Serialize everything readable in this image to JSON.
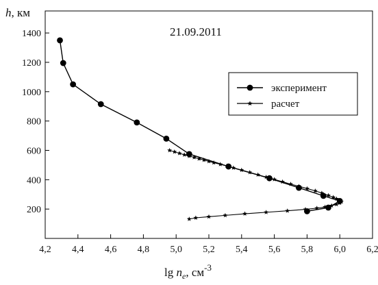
{
  "chart_data": {
    "type": "line",
    "annotation": "21.09.2011",
    "ylabel_var": "h",
    "ylabel_unit": ", км",
    "xlabel_prefix": "lg",
    "xlabel_var": "n",
    "xlabel_sub": "e",
    "xlabel_unit": ",  см",
    "xlabel_exp": "-3",
    "xlim": [
      4.2,
      6.2
    ],
    "ylim": [
      0,
      1550
    ],
    "xticks": [
      4.2,
      4.4,
      4.6,
      4.8,
      5.0,
      5.2,
      5.4,
      5.6,
      5.8,
      6.0,
      6.2
    ],
    "xtick_labels": [
      "4,2",
      "4,4",
      "4,6",
      "4,8",
      "5,0",
      "5,2",
      "5,4",
      "5,6",
      "5,8",
      "6,0",
      "6,2"
    ],
    "yticks": [
      200,
      400,
      600,
      800,
      1000,
      1200,
      1400
    ],
    "ytick_labels": [
      "200",
      "400",
      "600",
      "800",
      "1000",
      "1200",
      "1400"
    ],
    "grid": false,
    "legend_position": "right",
    "series": [
      {
        "name": "эксперимент",
        "marker": "circle",
        "color": "#000000",
        "x": [
          4.29,
          4.31,
          4.37,
          4.54,
          4.76,
          4.94,
          5.08,
          5.32,
          5.57,
          5.75,
          5.9,
          6.0,
          5.93,
          5.8
        ],
        "y": [
          1350,
          1195,
          1050,
          915,
          790,
          680,
          575,
          490,
          410,
          345,
          290,
          255,
          210,
          185
        ]
      },
      {
        "name": "расчет",
        "marker": "star",
        "color": "#000000",
        "x": [
          4.96,
          4.99,
          5.02,
          5.05,
          5.08,
          5.11,
          5.14,
          5.17,
          5.2,
          5.23,
          5.27,
          5.31,
          5.35,
          5.4,
          5.45,
          5.5,
          5.55,
          5.6,
          5.65,
          5.7,
          5.75,
          5.8,
          5.85,
          5.89,
          5.93,
          5.96,
          5.98,
          6.0,
          6.01,
          6.0,
          5.98,
          5.95,
          5.91,
          5.86,
          5.79,
          5.68,
          5.55,
          5.42,
          5.3,
          5.2,
          5.12,
          5.08
        ],
        "y": [
          600,
          590,
          580,
          570,
          561,
          552,
          543,
          534,
          525,
          516,
          505,
          494,
          481,
          466,
          450,
          434,
          418,
          402,
          386,
          370,
          355,
          340,
          324,
          309,
          293,
          280,
          270,
          260,
          250,
          241,
          232,
          223,
          214,
          206,
          198,
          188,
          178,
          168,
          157,
          148,
          140,
          132
        ]
      }
    ]
  }
}
